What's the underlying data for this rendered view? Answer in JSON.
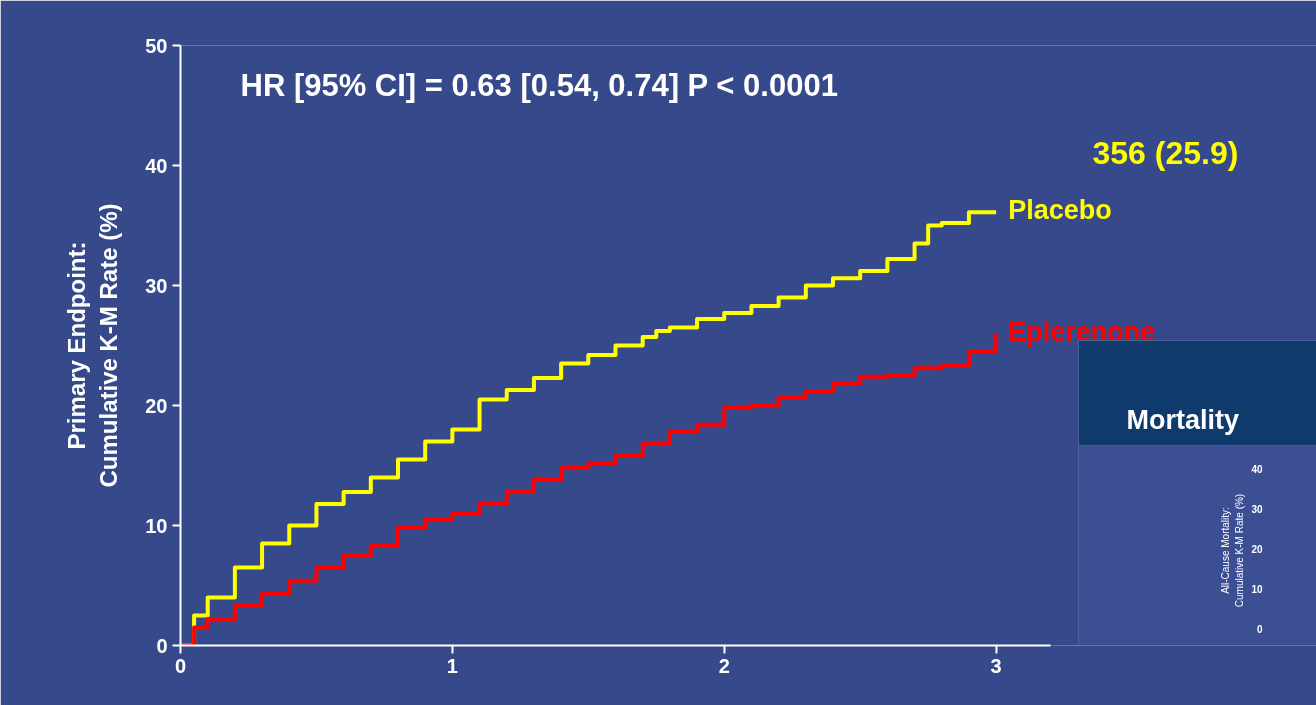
{
  "chart_data": {
    "type": "step",
    "title": "HR [95% CI] = 0.63 [0.54, 0.74] P < 0.0001",
    "ylabel": "Primary Endpoint:\nCumulative K-M Rate (%)",
    "xlim": [
      0,
      3.2
    ],
    "ylim": [
      0,
      50
    ],
    "xticks": [
      0,
      1,
      2,
      3
    ],
    "yticks": [
      0,
      10,
      20,
      30,
      40,
      50
    ],
    "grid": false,
    "series": [
      {
        "name": "Placebo",
        "color": "#ffff00",
        "x": [
          0,
          0.05,
          0.1,
          0.2,
          0.3,
          0.4,
          0.5,
          0.6,
          0.7,
          0.8,
          0.9,
          1.0,
          1.1,
          1.2,
          1.3,
          1.4,
          1.5,
          1.6,
          1.7,
          1.75,
          1.8,
          1.9,
          2.0,
          2.1,
          2.2,
          2.3,
          2.4,
          2.5,
          2.6,
          2.7,
          2.75,
          2.8,
          2.9,
          3.0
        ],
        "values": [
          0,
          2.5,
          4,
          6.5,
          8.5,
          10,
          11.8,
          12.8,
          14,
          15.5,
          17,
          18,
          20.5,
          21.3,
          22.3,
          23.5,
          24.2,
          25,
          25.7,
          26.2,
          26.5,
          27.2,
          27.7,
          28.3,
          29,
          30,
          30.6,
          31.2,
          32.2,
          33.5,
          35,
          35.2,
          36.1,
          36.1
        ]
      },
      {
        "name": "Eplerenone",
        "color": "#ff0000",
        "x": [
          0,
          0.05,
          0.1,
          0.2,
          0.3,
          0.4,
          0.5,
          0.6,
          0.7,
          0.8,
          0.9,
          1.0,
          1.1,
          1.2,
          1.3,
          1.4,
          1.5,
          1.6,
          1.7,
          1.8,
          1.9,
          2.0,
          2.1,
          2.2,
          2.3,
          2.4,
          2.5,
          2.6,
          2.7,
          2.8,
          2.9,
          3.0
        ],
        "values": [
          0,
          1.5,
          2.2,
          3.3,
          4.3,
          5.4,
          6.5,
          7.5,
          8.3,
          9.8,
          10.5,
          11,
          11.8,
          12.8,
          13.8,
          14.8,
          15.2,
          15.8,
          16.8,
          17.8,
          18.4,
          19.8,
          20,
          20.7,
          21.2,
          21.8,
          22.4,
          22.5,
          23.1,
          23.3,
          24.5,
          26
        ]
      }
    ],
    "annotations": [
      "356 (25.9)",
      "Mortality",
      "All-Cause Mortality:\nCumulative K-M Rate (%)",
      "40",
      "30",
      "20",
      "10",
      "0"
    ]
  }
}
